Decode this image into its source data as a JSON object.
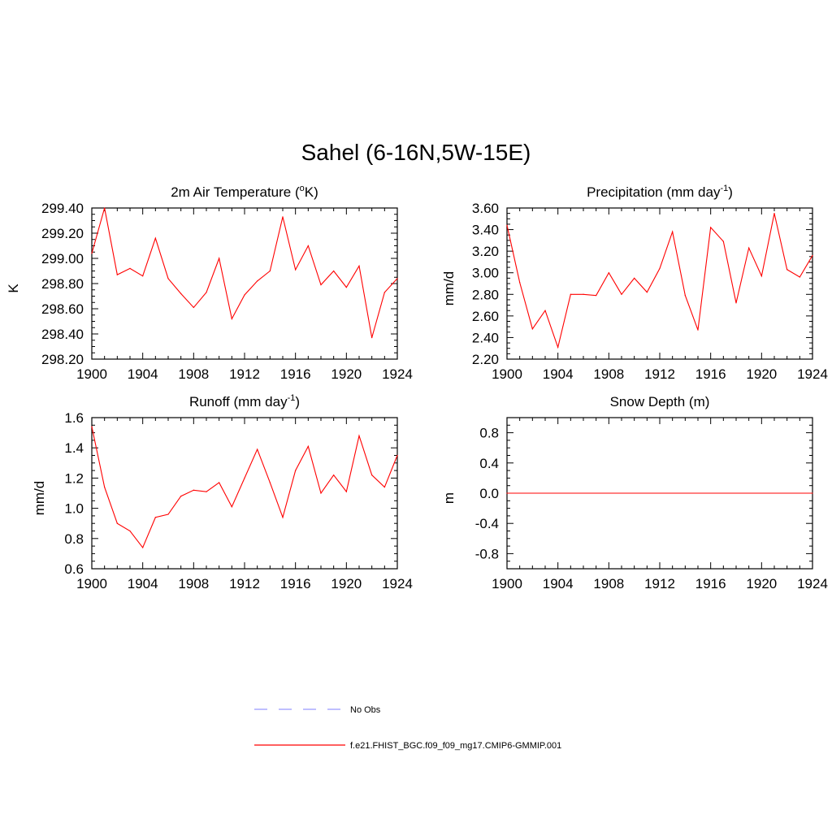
{
  "figure_title": "Sahel (6-16N,5W-15E)",
  "chart_data": [
    {
      "type": "line",
      "title": "2m Air Temperature (oK)",
      "title_parts": [
        "2m Air Temperature (",
        "o",
        "K)"
      ],
      "ylabel": "K",
      "xlim": [
        1900,
        1924
      ],
      "ylim": [
        298.2,
        299.4
      ],
      "yticks": [
        "299.40",
        "299.20",
        "299.00",
        "298.80",
        "298.60",
        "298.40",
        "298.20"
      ],
      "ytick_values": [
        299.4,
        299.2,
        299.0,
        298.8,
        298.6,
        298.4,
        298.2
      ],
      "xticks": [
        "1900",
        "1904",
        "1908",
        "1912",
        "1916",
        "1920",
        "1924"
      ],
      "x": [
        1900,
        1901,
        1902,
        1903,
        1904,
        1905,
        1906,
        1907,
        1908,
        1909,
        1910,
        1911,
        1912,
        1913,
        1914,
        1915,
        1916,
        1917,
        1918,
        1919,
        1920,
        1921,
        1922,
        1923,
        1924
      ],
      "series": [
        {
          "name": "f.e21.FHIST_BGC.f09_f09_mg17.CMIP6-GMMIP.001",
          "color": "#ff0000",
          "values": [
            299.04,
            299.4,
            298.87,
            298.92,
            298.86,
            299.16,
            298.84,
            298.72,
            298.61,
            298.73,
            299.0,
            298.52,
            298.71,
            298.82,
            298.9,
            299.33,
            298.91,
            299.1,
            298.79,
            298.9,
            298.77,
            298.94,
            298.37,
            298.73,
            298.84
          ]
        }
      ]
    },
    {
      "type": "line",
      "title": "Precipitation (mm day-1)",
      "title_parts": [
        "Precipitation (mm day",
        "-1",
        ")"
      ],
      "ylabel": "mm/d",
      "xlim": [
        1900,
        1924
      ],
      "ylim": [
        2.2,
        3.6
      ],
      "yticks": [
        "3.60",
        "3.40",
        "3.20",
        "3.00",
        "2.80",
        "2.60",
        "2.40",
        "2.20"
      ],
      "ytick_values": [
        3.6,
        3.4,
        3.2,
        3.0,
        2.8,
        2.6,
        2.4,
        2.2
      ],
      "xticks": [
        "1900",
        "1904",
        "1908",
        "1912",
        "1916",
        "1920",
        "1924"
      ],
      "x": [
        1900,
        1901,
        1902,
        1903,
        1904,
        1905,
        1906,
        1907,
        1908,
        1909,
        1910,
        1911,
        1912,
        1913,
        1914,
        1915,
        1916,
        1917,
        1918,
        1919,
        1920,
        1921,
        1922,
        1923,
        1924
      ],
      "series": [
        {
          "name": "f.e21.FHIST_BGC.f09_f09_mg17.CMIP6-GMMIP.001",
          "color": "#ff0000",
          "values": [
            3.44,
            2.91,
            2.48,
            2.65,
            2.31,
            2.8,
            2.8,
            2.79,
            3.0,
            2.8,
            2.95,
            2.82,
            3.04,
            3.38,
            2.79,
            2.47,
            3.42,
            3.29,
            2.72,
            3.23,
            2.97,
            3.55,
            3.03,
            2.96,
            3.16
          ]
        }
      ]
    },
    {
      "type": "line",
      "title": "Runoff (mm day-1)",
      "title_parts": [
        "Runoff (mm day",
        "-1",
        ")"
      ],
      "ylabel": "mm/d",
      "xlim": [
        1900,
        1924
      ],
      "ylim": [
        0.6,
        1.6
      ],
      "yticks": [
        "1.6",
        "1.4",
        "1.2",
        "1.0",
        "0.8",
        "0.6"
      ],
      "ytick_values": [
        1.6,
        1.4,
        1.2,
        1.0,
        0.8,
        0.6
      ],
      "xticks": [
        "1900",
        "1904",
        "1908",
        "1912",
        "1916",
        "1920",
        "1924"
      ],
      "x": [
        1900,
        1901,
        1902,
        1903,
        1904,
        1905,
        1906,
        1907,
        1908,
        1909,
        1910,
        1911,
        1912,
        1913,
        1914,
        1915,
        1916,
        1917,
        1918,
        1919,
        1920,
        1921,
        1922,
        1923,
        1924
      ],
      "series": [
        {
          "name": "f.e21.FHIST_BGC.f09_f09_mg17.CMIP6-GMMIP.001",
          "color": "#ff0000",
          "values": [
            1.54,
            1.14,
            0.9,
            0.85,
            0.74,
            0.94,
            0.96,
            1.08,
            1.12,
            1.11,
            1.17,
            1.01,
            1.2,
            1.39,
            1.17,
            0.94,
            1.25,
            1.41,
            1.1,
            1.22,
            1.11,
            1.48,
            1.22,
            1.14,
            1.35
          ]
        }
      ]
    },
    {
      "type": "line",
      "title": "Snow Depth (m)",
      "title_parts": [
        "Snow Depth (m)",
        "",
        ""
      ],
      "ylabel": "m",
      "xlim": [
        1900,
        1924
      ],
      "ylim": [
        -1.0,
        1.0
      ],
      "yticks": [
        "0.8",
        "0.4",
        "0.0",
        "-0.4",
        "-0.8"
      ],
      "ytick_values": [
        0.8,
        0.4,
        0.0,
        -0.4,
        -0.8
      ],
      "xticks": [
        "1900",
        "1904",
        "1908",
        "1912",
        "1916",
        "1920",
        "1924"
      ],
      "x": [
        1900,
        1924
      ],
      "series": [
        {
          "name": "f.e21.FHIST_BGC.f09_f09_mg17.CMIP6-GMMIP.001",
          "color": "#ff0000",
          "values": [
            0.0,
            0.0
          ]
        }
      ]
    }
  ],
  "legend": [
    {
      "label": "No Obs",
      "color": "#9999ff",
      "style": "dashed"
    },
    {
      "label": "f.e21.FHIST_BGC.f09_f09_mg17.CMIP6-GMMIP.001",
      "color": "#ff0000",
      "style": "solid"
    }
  ]
}
